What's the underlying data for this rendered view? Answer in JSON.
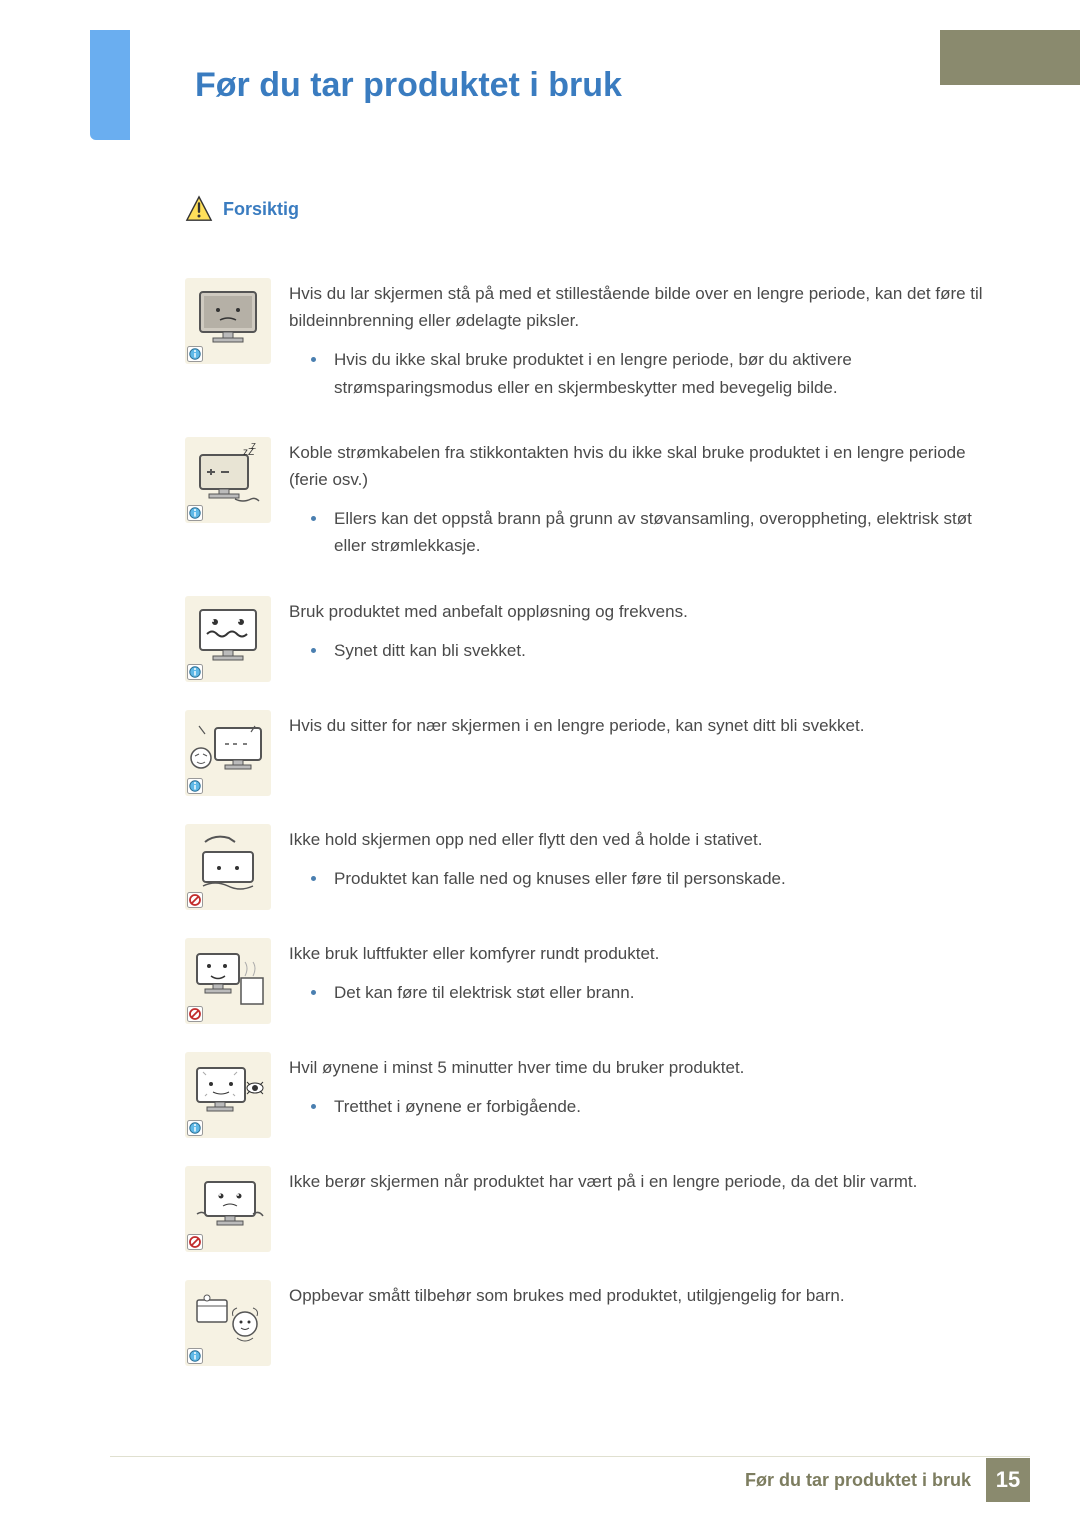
{
  "header": {
    "title": "Før du tar produktet i bruk",
    "banner_color": "#8a8a6e",
    "tab_color": "#6aaef0",
    "title_color": "#3a7cc0"
  },
  "caution": {
    "label": "Forsiktig",
    "label_color": "#3a7cc0",
    "tri_fill": "#ffe05a",
    "tri_stroke": "#333333"
  },
  "colors": {
    "icon_bg": "#f6f2e3",
    "info_badge_fill": "#5fb9e8",
    "info_badge_border": "#2d6f93",
    "prohibit_fill": "#ffffff",
    "prohibit_border": "#c22d2d",
    "bullet_color": "#4a7fb0",
    "text_color": "#4a4a4a"
  },
  "items": [
    {
      "lead": "Hvis du lar skjermen stå på med et stillestående bilde over en lengre periode, kan det føre til bildeinnbrenning eller ødelagte piksler.",
      "bullets": [
        "Hvis du ikke skal bruke produktet i en lengre periode, bør du aktivere strømsparingsmodus eller en skjermbeskytter med bevegelig bilde."
      ],
      "badge": "info"
    },
    {
      "lead": "Koble strømkabelen fra stikkontakten hvis du ikke skal bruke produktet i en lengre periode (ferie osv.)",
      "bullets": [
        "Ellers kan det oppstå brann på grunn av støvansamling, overoppheting, elektrisk støt eller strømlekkasje."
      ],
      "badge": "info"
    },
    {
      "lead": "Bruk produktet med anbefalt oppløsning og frekvens.",
      "bullets": [
        "Synet ditt kan bli svekket."
      ],
      "badge": "info"
    },
    {
      "lead": "Hvis du sitter for nær skjermen i en lengre periode, kan synet ditt bli svekket.",
      "bullets": [],
      "badge": "info"
    },
    {
      "lead": "Ikke hold skjermen opp ned eller flytt den ved å holde i stativet.",
      "bullets": [
        "Produktet kan falle ned og knuses eller føre til personskade."
      ],
      "badge": "prohibit"
    },
    {
      "lead": "Ikke bruk luftfukter eller komfyrer rundt produktet.",
      "bullets": [
        "Det kan føre til elektrisk støt eller brann."
      ],
      "badge": "prohibit"
    },
    {
      "lead": "Hvil øynene i minst 5 minutter hver time du bruker produktet.",
      "bullets": [
        "Tretthet i øynene er forbigående."
      ],
      "badge": "info"
    },
    {
      "lead": "Ikke berør skjermen når produktet har vært på i en lengre periode, da det blir varmt.",
      "bullets": [],
      "badge": "prohibit"
    },
    {
      "lead": "Oppbevar smått tilbehør som brukes med produktet, utilgjengelig for barn.",
      "bullets": [],
      "badge": "info"
    }
  ],
  "footer": {
    "title": "Før du tar produktet i bruk",
    "page_number": "15",
    "page_box_color": "#8a8a6e"
  }
}
